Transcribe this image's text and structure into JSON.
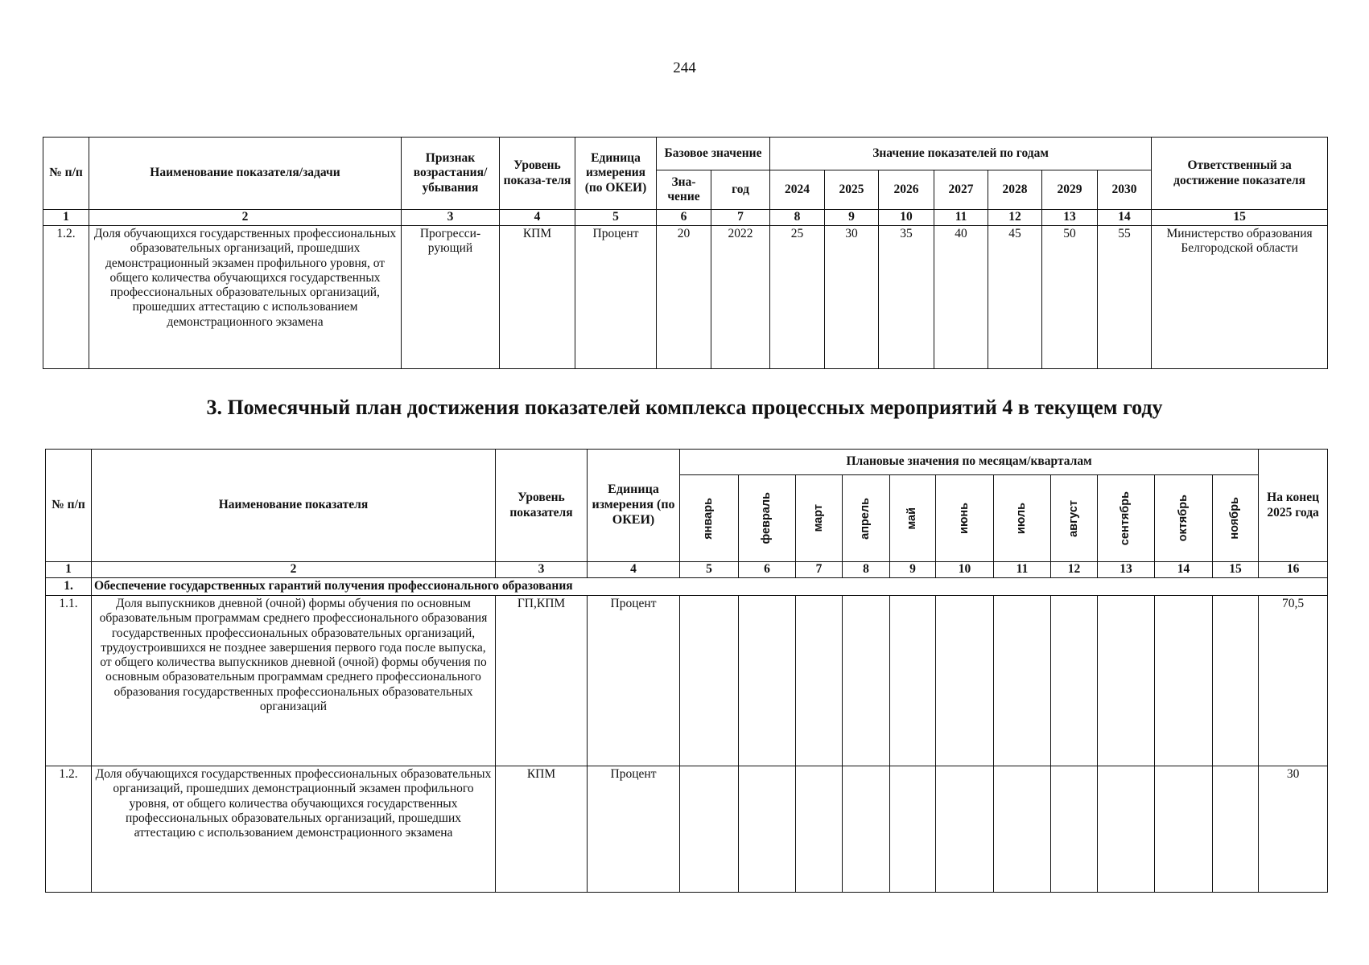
{
  "page_number": "244",
  "table1": {
    "headers": {
      "num": "№ п/п",
      "name": "Наименование показателя/задачи",
      "sign": "Признак возрастания/ убывания",
      "level": "Уровень показа-теля",
      "unit": "Единица измерения (по ОКЕИ)",
      "base": "Базовое значение",
      "base_value": "Зна-чение",
      "base_year": "год",
      "years_group": "Значение показателей по годам",
      "years": [
        "2024",
        "2025",
        "2026",
        "2027",
        "2028",
        "2029",
        "2030"
      ],
      "responsible": "Ответственный за достижение показателя"
    },
    "col_numbers": [
      "1",
      "2",
      "3",
      "4",
      "5",
      "6",
      "7",
      "8",
      "9",
      "10",
      "11",
      "12",
      "13",
      "14",
      "15"
    ],
    "rows": [
      {
        "num": "1.2.",
        "name": "Доля обучающихся государственных профессиональных образовательных организаций, прошедших демонстрационный экзамен профильного уровня, от общего количества обучающихся государственных профессиональных образовательных организаций, прошедших аттестацию с использованием демонстрационного экзамена",
        "sign": "Прогресси-рующий",
        "level": "КПМ",
        "unit": "Процент",
        "base_value": "20",
        "base_year": "2022",
        "values": [
          "25",
          "30",
          "35",
          "40",
          "45",
          "50",
          "55"
        ],
        "responsible": "Министерство образования Белгородской области"
      }
    ]
  },
  "section_title": "3. Помесячный план достижения показателей комплекса процессных мероприятий 4 в текущем году",
  "table2": {
    "headers": {
      "num": "№ п/п",
      "name": "Наименование показателя",
      "level": "Уровень показателя",
      "unit": "Единица измерения (по ОКЕИ)",
      "months_group": "Плановые значения по месяцам/кварталам",
      "months": [
        "январь",
        "февраль",
        "март",
        "апрель",
        "май",
        "июнь",
        "июль",
        "август",
        "сентябрь",
        "октябрь",
        "ноябрь"
      ],
      "end": "На конец 2025 года"
    },
    "col_numbers": [
      "1",
      "2",
      "3",
      "4",
      "5",
      "6",
      "7",
      "8",
      "9",
      "10",
      "11",
      "12",
      "13",
      "14",
      "15",
      "16"
    ],
    "section": {
      "num": "1.",
      "name": "Обеспечение государственных гарантий получения профессионального образования"
    },
    "rows": [
      {
        "num": "1.1.",
        "name": "Доля выпускников дневной (очной) формы обучения по основным образовательным программам среднего профессионального образования государственных профессиональных образовательных организаций, трудоустроившихся не позднее завершения первого года после выпуска, от общего количества выпускников дневной (очной) формы обучения по основным образовательным программам среднего профессионального образования государственных профессиональных образовательных организаций",
        "level": "ГП,КПМ",
        "unit": "Процент",
        "end": "70,5"
      },
      {
        "num": "1.2.",
        "name": "Доля обучающихся государственных профессиональных образовательных организаций, прошедших демонстрационный экзамен профильного уровня, от общего количества обучающихся государственных профессиональных образовательных организаций, прошедших аттестацию с использованием демонстрационного экзамена",
        "level": "КПМ",
        "unit": "Процент",
        "end": "30"
      }
    ]
  }
}
